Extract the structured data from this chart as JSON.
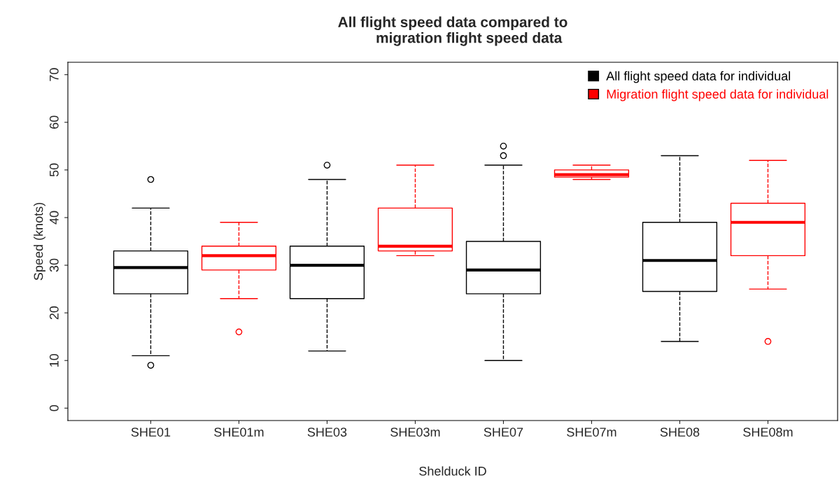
{
  "chart_data": {
    "type": "box",
    "title": "All flight speed data compared to\n        migration flight speed data",
    "xlabel": "Shelduck ID",
    "ylabel": "Speed (knots)",
    "categories": [
      "SHE01",
      "SHE01m",
      "SHE03",
      "SHE03m",
      "SHE07",
      "SHE07m",
      "SHE08",
      "SHE08m"
    ],
    "series": [
      {
        "name": "All flight speed data for individual",
        "color": "#000000",
        "boxes": [
          {
            "low": 11,
            "q1": 24,
            "median": 29.5,
            "q3": 33,
            "high": 42,
            "outliers": [
              48,
              9
            ]
          },
          null,
          {
            "low": 12,
            "q1": 23,
            "median": 30,
            "q3": 34,
            "high": 48,
            "outliers": [
              51
            ]
          },
          null,
          {
            "low": 10,
            "q1": 24,
            "median": 29,
            "q3": 35,
            "high": 51,
            "outliers": [
              53,
              55
            ]
          },
          null,
          {
            "low": 14,
            "q1": 24.5,
            "median": 31,
            "q3": 39,
            "high": 53
          },
          null
        ]
      },
      {
        "name": "Migration flight speed data for individual",
        "color": "#ff0000",
        "boxes": [
          null,
          {
            "low": 23,
            "q1": 29,
            "median": 32,
            "q3": 34,
            "high": 39,
            "outliers": [
              16
            ]
          },
          null,
          {
            "low": 32,
            "q1": 33,
            "median": 34,
            "q3": 42,
            "high": 51
          },
          null,
          {
            "low": 48,
            "q1": 48.5,
            "median": 49,
            "q3": 50,
            "high": 51
          },
          null,
          {
            "low": 25,
            "q1": 32,
            "median": 39,
            "q3": 43,
            "high": 52,
            "outliers": [
              14
            ]
          }
        ]
      }
    ],
    "ylim": [
      -2.6,
      72.6
    ],
    "yticks": [
      0,
      10,
      20,
      30,
      40,
      50,
      60,
      70
    ],
    "grid": false,
    "legend": "top right",
    "line_style": "dashed"
  }
}
